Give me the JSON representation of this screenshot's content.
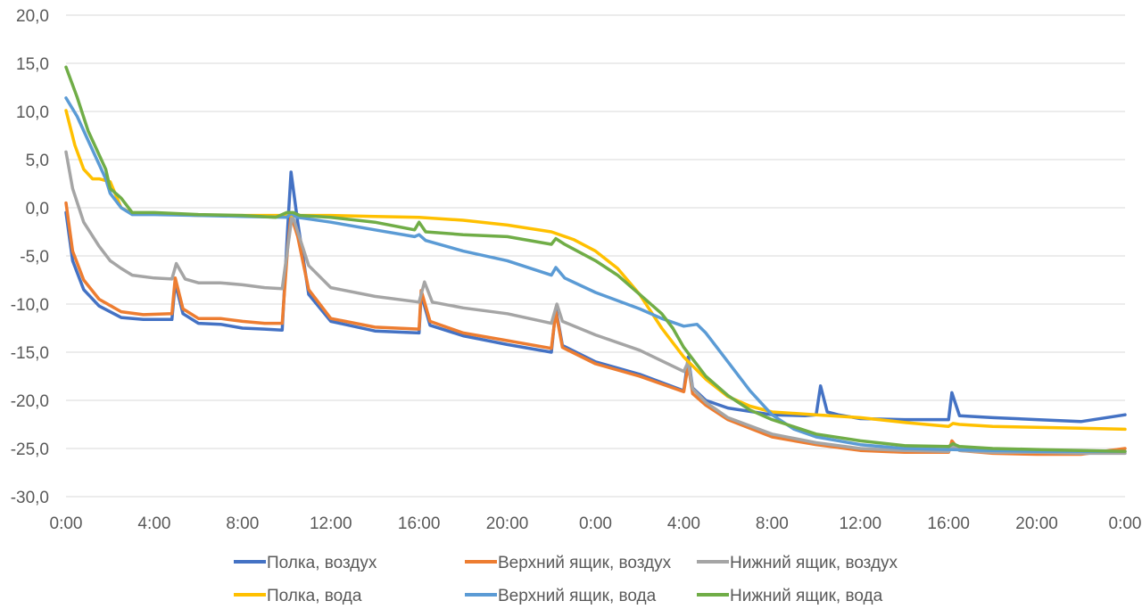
{
  "chart_data": {
    "type": "line",
    "title": "",
    "xlabel": "",
    "ylabel": "",
    "x_unit": "hours from start",
    "x_range": [
      0,
      48
    ],
    "ylim": [
      -30,
      20
    ],
    "y_ticks": [
      "20,0",
      "15,0",
      "10,0",
      "5,0",
      "0,0",
      "-5,0",
      "-10,0",
      "-15,0",
      "-20,0",
      "-25,0",
      "-30,0"
    ],
    "y_tick_values": [
      20,
      15,
      10,
      5,
      0,
      -5,
      -10,
      -15,
      -20,
      -25,
      -30
    ],
    "x_ticks": [
      "0:00",
      "4:00",
      "8:00",
      "12:00",
      "16:00",
      "20:00",
      "0:00",
      "4:00",
      "8:00",
      "12:00",
      "16:00",
      "20:00",
      "0:00"
    ],
    "x_tick_values": [
      0,
      4,
      8,
      12,
      16,
      20,
      24,
      28,
      32,
      36,
      40,
      44,
      48
    ],
    "grid": "horizontal",
    "legend_position": "bottom",
    "series": [
      {
        "name": "Полка, воздух",
        "color": "#4472c4",
        "x": [
          0,
          0.3,
          0.8,
          1.5,
          2.5,
          3.5,
          4.8,
          4.95,
          5.3,
          6,
          7,
          8,
          9,
          9.8,
          10.05,
          10.2,
          10.5,
          11,
          12,
          14,
          16,
          16.1,
          16.5,
          18,
          20,
          22,
          22.2,
          22.5,
          24,
          26,
          28,
          28.2,
          28.4,
          29,
          30,
          32,
          33.5,
          34,
          34.2,
          34.5,
          35,
          36,
          38,
          40,
          40.15,
          40.5,
          42,
          44,
          46,
          48
        ],
        "y": [
          -0.5,
          -5.5,
          -8.5,
          -10.2,
          -11.4,
          -11.6,
          -11.6,
          -7.8,
          -11,
          -12,
          -12.1,
          -12.5,
          -12.6,
          -12.7,
          -2,
          3.7,
          -1.5,
          -9,
          -11.8,
          -12.8,
          -13,
          -9,
          -12.2,
          -13.3,
          -14.2,
          -15,
          -10.5,
          -14.3,
          -16,
          -17.3,
          -19,
          -15.5,
          -18.7,
          -20,
          -20.8,
          -21.5,
          -21.6,
          -21.5,
          -18.5,
          -21.2,
          -21.5,
          -21.9,
          -22,
          -22,
          -19.2,
          -21.6,
          -21.8,
          -22,
          -22.2,
          -21.5
        ]
      },
      {
        "name": "Верхний ящик, воздух",
        "color": "#ed7d31",
        "x": [
          0,
          0.3,
          0.8,
          1.5,
          2.5,
          3.5,
          4.8,
          4.95,
          5.3,
          6,
          7,
          8,
          9,
          9.8,
          10.05,
          10.2,
          10.5,
          11,
          12,
          14,
          16,
          16.1,
          16.5,
          18,
          20,
          22,
          22.2,
          22.5,
          24,
          26,
          28,
          28.2,
          28.4,
          29,
          30,
          32,
          34,
          36,
          38,
          40,
          40.15,
          40.5,
          42,
          44,
          46,
          48
        ],
        "y": [
          0.5,
          -4.5,
          -7.5,
          -9.5,
          -10.8,
          -11.1,
          -11,
          -7.3,
          -10.5,
          -11.5,
          -11.5,
          -11.8,
          -12,
          -12,
          -4,
          -0.8,
          -3,
          -8.5,
          -11.5,
          -12.4,
          -12.6,
          -8.6,
          -11.8,
          -13,
          -13.8,
          -14.6,
          -10.8,
          -14.5,
          -16.2,
          -17.5,
          -19.1,
          -16.3,
          -19.3,
          -20.5,
          -22,
          -23.8,
          -24.6,
          -25.2,
          -25.4,
          -25.4,
          -24.2,
          -25.2,
          -25.5,
          -25.6,
          -25.6,
          -25
        ]
      },
      {
        "name": "Нижний ящик, воздух",
        "color": "#a5a5a5",
        "x": [
          0,
          0.3,
          0.8,
          1.5,
          2,
          2.5,
          3,
          4,
          4.8,
          5,
          5.4,
          6,
          7,
          8,
          9,
          9.8,
          10,
          10.25,
          10.5,
          11,
          12,
          14,
          16,
          16.25,
          16.6,
          18,
          20,
          22,
          22.25,
          22.5,
          24,
          26,
          28,
          28.2,
          28.4,
          29,
          30,
          32,
          34,
          36,
          38,
          40,
          40.2,
          40.5,
          42,
          44,
          46,
          48
        ],
        "y": [
          5.8,
          2,
          -1.5,
          -4,
          -5.5,
          -6.3,
          -7,
          -7.3,
          -7.4,
          -5.8,
          -7.4,
          -7.8,
          -7.8,
          -8,
          -8.3,
          -8.4,
          -5,
          -0.7,
          -2.5,
          -6,
          -8.3,
          -9.2,
          -9.8,
          -7.7,
          -9.8,
          -10.4,
          -11,
          -12,
          -10,
          -11.8,
          -13.2,
          -14.8,
          -17,
          -16,
          -18.8,
          -20.2,
          -21.8,
          -23.5,
          -24.4,
          -25,
          -25.2,
          -25.3,
          -24.8,
          -25.2,
          -25.4,
          -25.4,
          -25.5,
          -25.5
        ]
      },
      {
        "name": "Полка, вода",
        "color": "#ffc000",
        "x": [
          0,
          0.4,
          0.8,
          1.2,
          1.5,
          2,
          2.5,
          3,
          4,
          6,
          8,
          10,
          12,
          14,
          16,
          18,
          20,
          22,
          23,
          24,
          25,
          26,
          27,
          28,
          29,
          30,
          31,
          32,
          34,
          36,
          38,
          40,
          40.2,
          40.5,
          42,
          44,
          46,
          48
        ],
        "y": [
          10.1,
          6.5,
          4,
          3,
          3,
          2.7,
          0,
          -0.6,
          -0.6,
          -0.8,
          -0.8,
          -0.8,
          -0.8,
          -0.9,
          -1,
          -1.3,
          -1.8,
          -2.5,
          -3.3,
          -4.5,
          -6.3,
          -9,
          -12.5,
          -15.5,
          -17.8,
          -19.6,
          -20.6,
          -21.2,
          -21.5,
          -21.8,
          -22.3,
          -22.7,
          -22.4,
          -22.5,
          -22.7,
          -22.8,
          -22.9,
          -23
        ]
      },
      {
        "name": "Верхний ящик, вода",
        "color": "#5b9bd5",
        "x": [
          0,
          0.5,
          1,
          1.5,
          1.8,
          2,
          2.5,
          3,
          4,
          6,
          8,
          10,
          10.2,
          10.5,
          12,
          14,
          15.8,
          16,
          16.3,
          18,
          20,
          22,
          22.2,
          22.6,
          24,
          26,
          27,
          28,
          28.6,
          29,
          30,
          31,
          32,
          33,
          34,
          36,
          38,
          40,
          42,
          44,
          46,
          48
        ],
        "y": [
          11.4,
          9.5,
          7,
          4.5,
          3,
          1.5,
          0,
          -0.7,
          -0.7,
          -0.8,
          -0.9,
          -1,
          -0.6,
          -1,
          -1.5,
          -2.3,
          -3,
          -2.8,
          -3.4,
          -4.5,
          -5.5,
          -7,
          -6.2,
          -7.3,
          -8.8,
          -10.5,
          -11.5,
          -12.3,
          -12.1,
          -13,
          -16,
          -19,
          -21.5,
          -23,
          -23.8,
          -24.6,
          -25,
          -25.1,
          -25.2,
          -25.3,
          -25.3,
          -25.3
        ]
      },
      {
        "name": "Нижний ящик, вода",
        "color": "#70ad47",
        "x": [
          0,
          0.5,
          1,
          1.5,
          1.8,
          2,
          2.5,
          3,
          4,
          6,
          8,
          9.5,
          10,
          10.3,
          10.6,
          12,
          14,
          15.8,
          16,
          16.3,
          18,
          20,
          22,
          22.2,
          22.6,
          24,
          25,
          26,
          27,
          27.5,
          28,
          29,
          30,
          31,
          32,
          34,
          36,
          38,
          40,
          40.2,
          40.5,
          42,
          44,
          46,
          48
        ],
        "y": [
          14.6,
          11.5,
          8,
          5.5,
          4,
          2,
          1,
          -0.5,
          -0.5,
          -0.7,
          -0.8,
          -1,
          -0.5,
          -0.5,
          -0.8,
          -1,
          -1.5,
          -2.3,
          -1.5,
          -2.5,
          -2.8,
          -3,
          -3.8,
          -3.2,
          -3.8,
          -5.5,
          -7,
          -9,
          -11,
          -12.5,
          -14.5,
          -17.5,
          -19.5,
          -21,
          -22,
          -23.5,
          -24.2,
          -24.7,
          -24.8,
          -24.5,
          -24.8,
          -25,
          -25.1,
          -25.2,
          -25.3
        ]
      }
    ]
  }
}
